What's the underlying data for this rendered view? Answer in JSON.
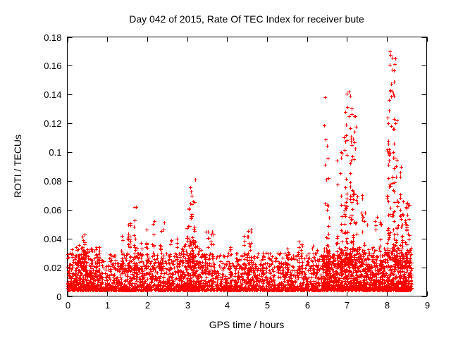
{
  "page": {
    "background_color": "#ffffff",
    "text_color": "#000000"
  },
  "chart_data": {
    "type": "scatter",
    "title": "Day 042 of 2015, Rate Of TEC Index for receiver bute",
    "xlabel": "GPS time / hours",
    "ylabel": "ROTI / TECUs",
    "xlim": [
      0,
      9
    ],
    "ylim": [
      0,
      0.18
    ],
    "xticks": [
      0,
      1,
      2,
      3,
      4,
      5,
      6,
      7,
      8,
      9
    ],
    "yticks": [
      0,
      0.02,
      0.04,
      0.06,
      0.08,
      0.1,
      0.12,
      0.14,
      0.16,
      0.18
    ],
    "grid": false,
    "legend": "none",
    "marker": "plus",
    "marker_color": "#ff0000",
    "axis_color": "#000000",
    "data_x_range": [
      0,
      8.62
    ],
    "baseline_bands": [
      {
        "x_range": [
          0,
          8.62
        ],
        "points": 3200,
        "y_min": 0.004,
        "y_max": 0.03,
        "shape": 2.3
      },
      {
        "x_range": [
          0,
          0.7
        ],
        "points": 180,
        "y_min": 0.006,
        "y_max": 0.034,
        "shape": 2.0
      },
      {
        "x_range": [
          2.8,
          3.4
        ],
        "points": 150,
        "y_min": 0.006,
        "y_max": 0.036,
        "shape": 2.0
      },
      {
        "x_range": [
          6.4,
          8.62
        ],
        "points": 650,
        "y_min": 0.005,
        "y_max": 0.034,
        "shape": 2.0
      }
    ],
    "spike_clusters": [
      {
        "x_center": 0.35,
        "x_spread": 0.18,
        "points": 35,
        "y_base": 0.018,
        "y_max": 0.043
      },
      {
        "x_center": 0.8,
        "x_spread": 0.12,
        "points": 18,
        "y_base": 0.016,
        "y_max": 0.034
      },
      {
        "x_center": 1.3,
        "x_spread": 0.1,
        "points": 16,
        "y_base": 0.018,
        "y_max": 0.042
      },
      {
        "x_center": 1.65,
        "x_spread": 0.15,
        "points": 45,
        "y_base": 0.02,
        "y_max": 0.062
      },
      {
        "x_center": 1.95,
        "x_spread": 0.1,
        "points": 20,
        "y_base": 0.018,
        "y_max": 0.046
      },
      {
        "x_center": 2.28,
        "x_spread": 0.15,
        "points": 35,
        "y_base": 0.018,
        "y_max": 0.052
      },
      {
        "x_center": 2.65,
        "x_spread": 0.1,
        "points": 15,
        "y_base": 0.016,
        "y_max": 0.04
      },
      {
        "x_center": 3.1,
        "x_spread": 0.18,
        "points": 80,
        "y_base": 0.02,
        "y_max": 0.081
      },
      {
        "x_center": 3.6,
        "x_spread": 0.15,
        "points": 30,
        "y_base": 0.016,
        "y_max": 0.045
      },
      {
        "x_center": 4.0,
        "x_spread": 0.12,
        "points": 18,
        "y_base": 0.015,
        "y_max": 0.034
      },
      {
        "x_center": 4.5,
        "x_spread": 0.15,
        "points": 28,
        "y_base": 0.016,
        "y_max": 0.046
      },
      {
        "x_center": 5.0,
        "x_spread": 0.1,
        "points": 12,
        "y_base": 0.015,
        "y_max": 0.03
      },
      {
        "x_center": 5.55,
        "x_spread": 0.12,
        "points": 16,
        "y_base": 0.015,
        "y_max": 0.033
      },
      {
        "x_center": 5.85,
        "x_spread": 0.12,
        "points": 22,
        "y_base": 0.016,
        "y_max": 0.038
      },
      {
        "x_center": 6.15,
        "x_spread": 0.1,
        "points": 15,
        "y_base": 0.016,
        "y_max": 0.035
      },
      {
        "x_center": 6.52,
        "x_spread": 0.1,
        "points": 40,
        "y_base": 0.022,
        "y_max": 0.138,
        "shape": 2.6
      },
      {
        "x_center": 6.8,
        "x_spread": 0.1,
        "points": 25,
        "y_base": 0.02,
        "y_max": 0.1,
        "shape": 2.4
      },
      {
        "x_center": 7.0,
        "x_spread": 0.15,
        "points": 110,
        "y_base": 0.022,
        "y_max": 0.142,
        "shape": 2.4
      },
      {
        "x_center": 7.2,
        "x_spread": 0.08,
        "points": 30,
        "y_base": 0.02,
        "y_max": 0.125,
        "shape": 2.4
      },
      {
        "x_center": 7.45,
        "x_spread": 0.1,
        "points": 25,
        "y_base": 0.018,
        "y_max": 0.07
      },
      {
        "x_center": 7.75,
        "x_spread": 0.1,
        "points": 20,
        "y_base": 0.018,
        "y_max": 0.055
      },
      {
        "x_center": 8.12,
        "x_spread": 0.12,
        "points": 120,
        "y_base": 0.025,
        "y_max": 0.17,
        "shape": 2.6
      },
      {
        "x_center": 8.3,
        "x_spread": 0.1,
        "points": 45,
        "y_base": 0.02,
        "y_max": 0.09,
        "shape": 2.2
      },
      {
        "x_center": 8.5,
        "x_spread": 0.1,
        "points": 70,
        "y_base": 0.02,
        "y_max": 0.066
      }
    ]
  }
}
